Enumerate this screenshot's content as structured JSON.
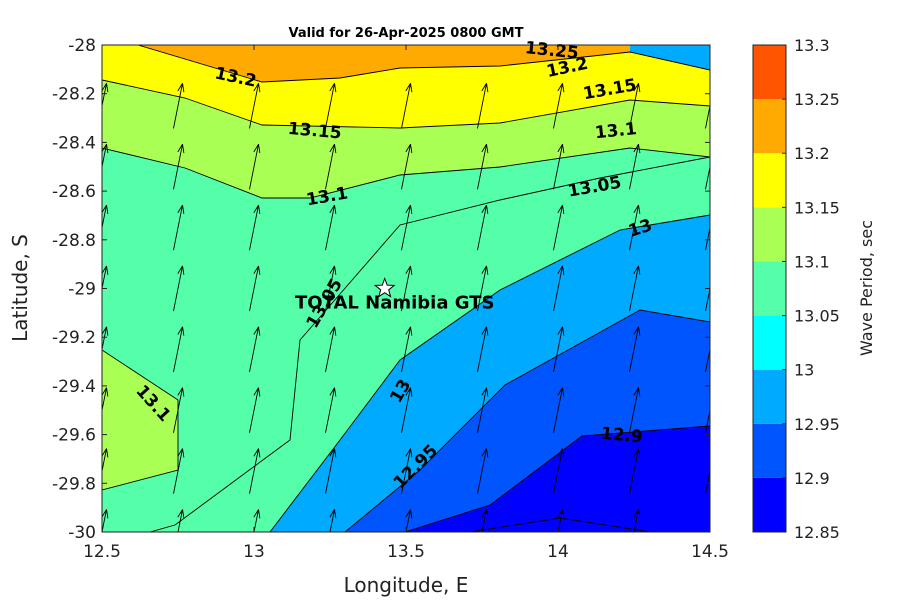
{
  "chart_data": {
    "type": "contour",
    "title": "Valid for 26-Apr-2025 0800 GMT",
    "xlabel": "Longitude, E",
    "ylabel": "Latitude, S",
    "xlim": [
      12.5,
      14.5
    ],
    "ylim": [
      -30,
      -28
    ],
    "xticks": [
      "12.5",
      "13",
      "13.5",
      "14",
      "14.5"
    ],
    "yticks": [
      "-28",
      "-28.2",
      "-28.4",
      "-28.6",
      "-28.8",
      "-29",
      "-29.2",
      "-29.4",
      "-29.6",
      "-29.8",
      "-30"
    ],
    "colorbar": {
      "label": "Wave Period, sec",
      "ticks": [
        "13.3",
        "13.25",
        "13.2",
        "13.15",
        "13.1",
        "13.05",
        "13",
        "12.95",
        "12.9",
        "12.85"
      ],
      "levels": [
        12.85,
        12.9,
        12.95,
        13.0,
        13.05,
        13.1,
        13.15,
        13.2,
        13.25,
        13.3
      ],
      "colors": [
        "#0000ff",
        "#0055ff",
        "#00aaff",
        "#00ffff",
        "#55ffaa",
        "#aaff55",
        "#ffff00",
        "#ffaa00",
        "#ff5500"
      ]
    },
    "contour_labels": [
      {
        "text": "13.25",
        "lon": 13.98,
        "lat": -28.02
      },
      {
        "text": "13.2",
        "lon": 12.94,
        "lat": -28.13
      },
      {
        "text": "13.2",
        "lon": 14.03,
        "lat": -28.09
      },
      {
        "text": "13.15",
        "lon": 13.2,
        "lat": -28.35
      },
      {
        "text": "13.15",
        "lon": 14.17,
        "lat": -28.18
      },
      {
        "text": "13.1",
        "lon": 14.19,
        "lat": -28.35
      },
      {
        "text": "13.1",
        "lon": 13.24,
        "lat": -28.62
      },
      {
        "text": "13.05",
        "lon": 14.12,
        "lat": -28.58
      },
      {
        "text": "13",
        "lon": 14.27,
        "lat": -28.75
      },
      {
        "text": "13.05",
        "lon": 13.23,
        "lat": -29.06
      },
      {
        "text": "13.1",
        "lon": 12.67,
        "lat": -29.47
      },
      {
        "text": "13",
        "lon": 13.48,
        "lat": -29.42
      },
      {
        "text": "12.95",
        "lon": 13.53,
        "lat": -29.73
      },
      {
        "text": "12.9",
        "lon": 14.21,
        "lat": -29.6
      }
    ],
    "station": {
      "name": "TOTAL Namibia GTS",
      "lon": 13.43,
      "lat": -29.0
    },
    "wave_direction_arrows": "uniform grid every 0.25 deg, pointing NNE"
  }
}
